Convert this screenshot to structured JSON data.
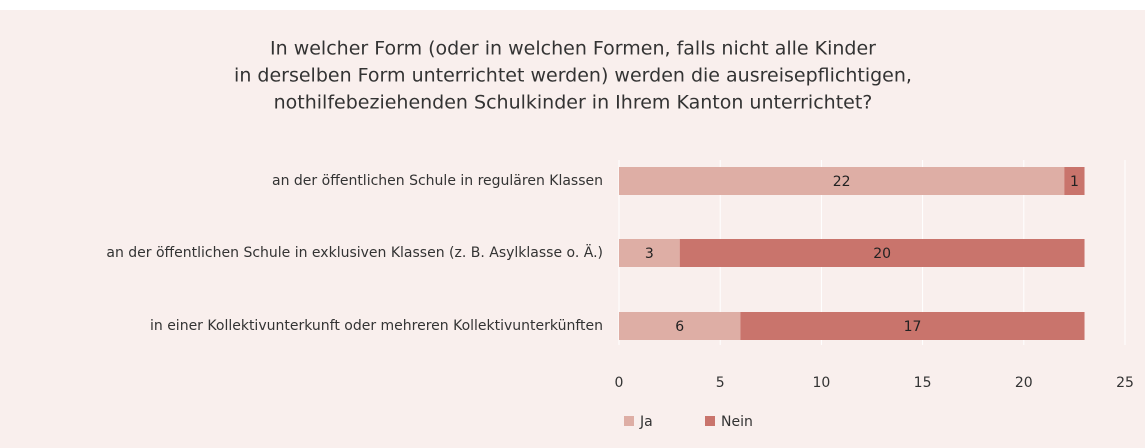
{
  "chart_data": {
    "type": "stacked-bar-horizontal",
    "title": [
      "In welcher Form (oder in welchen Formen, falls nicht alle Kinder",
      "in derselben Form unterrichtet werden) werden die ausreisepflichtigen,",
      "nothilfebeziehenden Schulkinder in Ihrem Kanton unterrichtet?"
    ],
    "categories": [
      "an der öffentlichen Schule in regulären Klassen",
      "an der öffentlichen Schule in exklusiven Klassen (z. B. Asylklasse o. Ä.)",
      "in einer Kollektivunterkunft oder mehreren Kollektivunterkünften"
    ],
    "series": [
      {
        "name": "Ja",
        "color": "#deaea5",
        "values": [
          22,
          3,
          6
        ]
      },
      {
        "name": "Nein",
        "color": "#c9746c",
        "values": [
          1,
          20,
          17
        ]
      }
    ],
    "xlim": [
      0,
      25
    ],
    "xticks": [
      0,
      5,
      10,
      15,
      20,
      25
    ],
    "grid": true,
    "legend": "bottom"
  }
}
